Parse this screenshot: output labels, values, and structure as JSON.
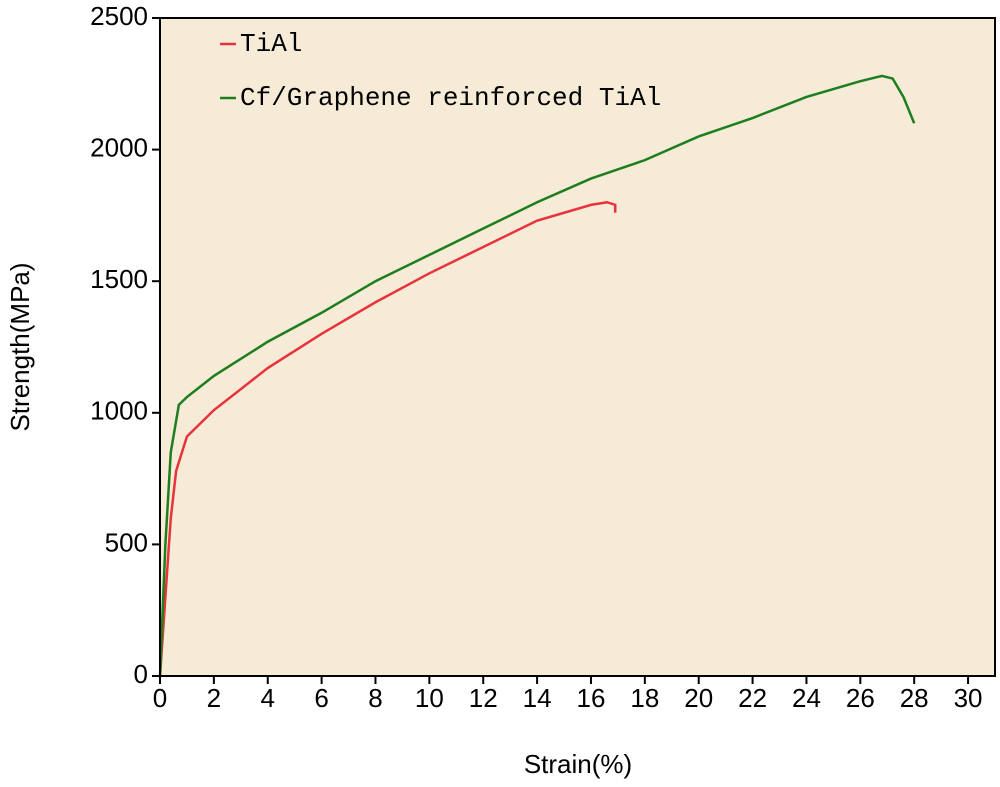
{
  "chart_data": {
    "type": "line",
    "x_label": "Strain(%)",
    "y_label": "Strength(MPa)",
    "xlim": [
      0,
      31
    ],
    "ylim": [
      0,
      2500
    ],
    "xticks": [
      0,
      2,
      4,
      6,
      8,
      10,
      12,
      14,
      16,
      18,
      20,
      22,
      24,
      26,
      28,
      30
    ],
    "yticks": [
      0,
      500,
      1000,
      1500,
      2000,
      2500
    ],
    "background": "#f5ebd7",
    "series": [
      {
        "name": "TiAl",
        "color": "#e8323c",
        "x": [
          0,
          0.2,
          0.4,
          0.6,
          1.0,
          2,
          4,
          6,
          8,
          10,
          12,
          14,
          16,
          16.6,
          16.9,
          16.9
        ],
        "values": [
          0,
          300,
          600,
          780,
          910,
          1010,
          1170,
          1300,
          1420,
          1530,
          1630,
          1730,
          1790,
          1800,
          1790,
          1760
        ]
      },
      {
        "name": "Cf/Graphene reinforced TiAl",
        "color": "#1e7d1e",
        "x": [
          0,
          0.2,
          0.4,
          0.7,
          1,
          2,
          4,
          6,
          8,
          10,
          12,
          14,
          16,
          18,
          20,
          22,
          24,
          26,
          26.8,
          27.2,
          27.6,
          28
        ],
        "values": [
          0,
          500,
          850,
          1030,
          1060,
          1140,
          1270,
          1380,
          1500,
          1600,
          1700,
          1800,
          1890,
          1960,
          2050,
          2120,
          2200,
          2260,
          2280,
          2270,
          2200,
          2100
        ]
      }
    ]
  }
}
